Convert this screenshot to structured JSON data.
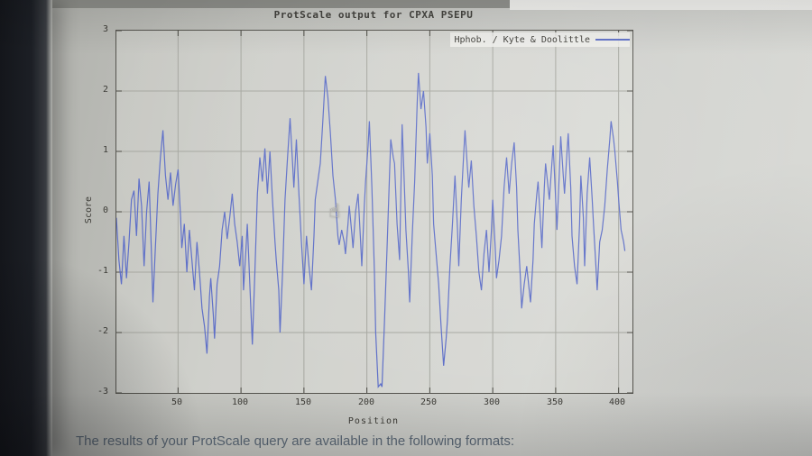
{
  "page": {
    "bottom_text": "The results of your ProtScale query are available in the following formats:",
    "cursor_icon": "☝"
  },
  "chart": {
    "title": "ProtScale output for CPXA PSEPU",
    "legend": "Hphob. / Kyte & Doolittle",
    "xlabel": "Position",
    "ylabel": "Score",
    "xtick_labels": [
      "50",
      "100",
      "150",
      "200",
      "250",
      "300",
      "350",
      "400"
    ],
    "ytick_labels": [
      "3",
      "2",
      "1",
      "0",
      "-1",
      "-2",
      "-3"
    ]
  },
  "chart_data": {
    "type": "line",
    "title": "ProtScale output for CPXA PSEPU",
    "xlabel": "Position",
    "ylabel": "Score",
    "xlim": [
      1,
      411
    ],
    "ylim": [
      -3,
      3
    ],
    "xticks": [
      50,
      100,
      150,
      200,
      250,
      300,
      350,
      400
    ],
    "yticks": [
      3,
      2,
      1,
      0,
      -1,
      -2,
      -3
    ],
    "grid": true,
    "legend_position": "top-right",
    "series": [
      {
        "name": "Hphob. / Kyte & Doolittle",
        "color": "#5e6fc8",
        "points": [
          [
            1,
            -0.1
          ],
          [
            3,
            -0.8
          ],
          [
            5,
            -1.2
          ],
          [
            7,
            -0.4
          ],
          [
            9,
            -1.1
          ],
          [
            11,
            -0.5
          ],
          [
            13,
            0.2
          ],
          [
            15,
            0.35
          ],
          [
            17,
            -0.4
          ],
          [
            19,
            0.55
          ],
          [
            21,
            0.1
          ],
          [
            23,
            -0.9
          ],
          [
            25,
            0.0
          ],
          [
            27,
            0.5
          ],
          [
            29,
            -0.8
          ],
          [
            30,
            -1.5
          ],
          [
            32,
            -0.6
          ],
          [
            34,
            0.3
          ],
          [
            36,
            0.9
          ],
          [
            38,
            1.35
          ],
          [
            40,
            0.6
          ],
          [
            42,
            0.2
          ],
          [
            44,
            0.65
          ],
          [
            46,
            0.1
          ],
          [
            48,
            0.45
          ],
          [
            50,
            0.7
          ],
          [
            52,
            -0.1
          ],
          [
            53,
            -0.6
          ],
          [
            55,
            -0.2
          ],
          [
            57,
            -1.0
          ],
          [
            59,
            -0.3
          ],
          [
            61,
            -0.8
          ],
          [
            63,
            -1.3
          ],
          [
            65,
            -0.5
          ],
          [
            67,
            -1.0
          ],
          [
            69,
            -1.6
          ],
          [
            71,
            -1.9
          ],
          [
            73,
            -2.35
          ],
          [
            75,
            -1.4
          ],
          [
            76,
            -1.1
          ],
          [
            78,
            -1.7
          ],
          [
            79,
            -2.1
          ],
          [
            81,
            -1.2
          ],
          [
            83,
            -0.9
          ],
          [
            85,
            -0.3
          ],
          [
            87,
            0.0
          ],
          [
            89,
            -0.45
          ],
          [
            91,
            -0.1
          ],
          [
            93,
            0.3
          ],
          [
            95,
            -0.2
          ],
          [
            97,
            -0.5
          ],
          [
            99,
            -0.9
          ],
          [
            101,
            -0.4
          ],
          [
            102,
            -1.3
          ],
          [
            104,
            -0.6
          ],
          [
            105,
            -0.2
          ],
          [
            107,
            -1.2
          ],
          [
            109,
            -2.2
          ],
          [
            111,
            -1.0
          ],
          [
            113,
            0.3
          ],
          [
            115,
            0.9
          ],
          [
            117,
            0.5
          ],
          [
            119,
            1.05
          ],
          [
            121,
            0.3
          ],
          [
            123,
            1.0
          ],
          [
            125,
            0.2
          ],
          [
            127,
            -0.5
          ],
          [
            128,
            -0.8
          ],
          [
            130,
            -1.3
          ],
          [
            131,
            -2.0
          ],
          [
            133,
            -1.0
          ],
          [
            135,
            0.2
          ],
          [
            137,
            0.9
          ],
          [
            139,
            1.55
          ],
          [
            141,
            0.8
          ],
          [
            142,
            0.4
          ],
          [
            144,
            1.2
          ],
          [
            146,
            0.3
          ],
          [
            148,
            -0.5
          ],
          [
            150,
            -1.2
          ],
          [
            152,
            -0.4
          ],
          [
            154,
            -0.9
          ],
          [
            156,
            -1.3
          ],
          [
            158,
            -0.4
          ],
          [
            159,
            0.2
          ],
          [
            161,
            0.5
          ],
          [
            163,
            0.8
          ],
          [
            165,
            1.5
          ],
          [
            167,
            2.25
          ],
          [
            169,
            1.9
          ],
          [
            171,
            1.3
          ],
          [
            173,
            0.6
          ],
          [
            175,
            0.2
          ],
          [
            177,
            -0.4
          ],
          [
            178,
            -0.55
          ],
          [
            180,
            -0.3
          ],
          [
            182,
            -0.5
          ],
          [
            183,
            -0.7
          ],
          [
            185,
            -0.2
          ],
          [
            186,
            0.1
          ],
          [
            188,
            -0.35
          ],
          [
            189,
            -0.6
          ],
          [
            191,
            0.0
          ],
          [
            193,
            0.3
          ],
          [
            195,
            -0.5
          ],
          [
            196,
            -0.9
          ],
          [
            198,
            0.1
          ],
          [
            199,
            0.5
          ],
          [
            201,
            1.1
          ],
          [
            202,
            1.5
          ],
          [
            204,
            0.4
          ],
          [
            206,
            -1.0
          ],
          [
            207,
            -2.0
          ],
          [
            209,
            -2.9
          ],
          [
            211,
            -2.85
          ],
          [
            212,
            -2.9
          ],
          [
            214,
            -1.8
          ],
          [
            216,
            -0.6
          ],
          [
            218,
            0.6
          ],
          [
            219,
            1.2
          ],
          [
            221,
            0.9
          ],
          [
            222,
            0.8
          ],
          [
            224,
            -0.2
          ],
          [
            226,
            -0.8
          ],
          [
            228,
            1.45
          ],
          [
            229,
            0.9
          ],
          [
            231,
            -0.3
          ],
          [
            233,
            -1.0
          ],
          [
            234,
            -1.5
          ],
          [
            236,
            -0.4
          ],
          [
            238,
            0.5
          ],
          [
            240,
            1.8
          ],
          [
            241,
            2.3
          ],
          [
            243,
            1.7
          ],
          [
            245,
            2.0
          ],
          [
            247,
            1.4
          ],
          [
            248,
            0.8
          ],
          [
            250,
            1.3
          ],
          [
            252,
            0.6
          ],
          [
            253,
            -0.2
          ],
          [
            255,
            -0.7
          ],
          [
            257,
            -1.2
          ],
          [
            259,
            -1.9
          ],
          [
            261,
            -2.55
          ],
          [
            263,
            -2.1
          ],
          [
            264,
            -1.8
          ],
          [
            266,
            -0.9
          ],
          [
            268,
            -0.2
          ],
          [
            270,
            0.6
          ],
          [
            272,
            -0.3
          ],
          [
            273,
            -0.9
          ],
          [
            275,
            0.2
          ],
          [
            277,
            1.0
          ],
          [
            278,
            1.35
          ],
          [
            280,
            0.7
          ],
          [
            281,
            0.4
          ],
          [
            283,
            0.85
          ],
          [
            285,
            0.1
          ],
          [
            287,
            -0.4
          ],
          [
            289,
            -1.0
          ],
          [
            291,
            -1.3
          ],
          [
            293,
            -0.7
          ],
          [
            295,
            -0.3
          ],
          [
            297,
            -1.0
          ],
          [
            299,
            -0.3
          ],
          [
            300,
            0.2
          ],
          [
            302,
            -0.6
          ],
          [
            303,
            -1.1
          ],
          [
            305,
            -0.8
          ],
          [
            307,
            -0.4
          ],
          [
            309,
            0.4
          ],
          [
            311,
            0.9
          ],
          [
            313,
            0.3
          ],
          [
            315,
            0.8
          ],
          [
            317,
            1.15
          ],
          [
            319,
            0.4
          ],
          [
            320,
            -0.3
          ],
          [
            322,
            -1.1
          ],
          [
            323,
            -1.6
          ],
          [
            325,
            -1.2
          ],
          [
            327,
            -0.9
          ],
          [
            329,
            -1.3
          ],
          [
            330,
            -1.5
          ],
          [
            332,
            -0.8
          ],
          [
            333,
            -0.2
          ],
          [
            335,
            0.3
          ],
          [
            336,
            0.5
          ],
          [
            338,
            -0.2
          ],
          [
            339,
            -0.6
          ],
          [
            341,
            0.4
          ],
          [
            342,
            0.8
          ],
          [
            344,
            0.4
          ],
          [
            345,
            0.2
          ],
          [
            347,
            0.8
          ],
          [
            348,
            1.1
          ],
          [
            350,
            0.2
          ],
          [
            351,
            -0.3
          ],
          [
            353,
            0.7
          ],
          [
            354,
            1.25
          ],
          [
            356,
            0.6
          ],
          [
            357,
            0.3
          ],
          [
            359,
            1.0
          ],
          [
            360,
            1.3
          ],
          [
            362,
            0.4
          ],
          [
            363,
            -0.4
          ],
          [
            365,
            -0.9
          ],
          [
            367,
            -1.2
          ],
          [
            369,
            -0.2
          ],
          [
            370,
            0.6
          ],
          [
            372,
            -0.1
          ],
          [
            373,
            -0.9
          ],
          [
            375,
            0.3
          ],
          [
            377,
            0.9
          ],
          [
            379,
            0.2
          ],
          [
            380,
            -0.2
          ],
          [
            382,
            -0.9
          ],
          [
            383,
            -1.3
          ],
          [
            385,
            -0.5
          ],
          [
            387,
            -0.3
          ],
          [
            389,
            0.1
          ],
          [
            391,
            0.7
          ],
          [
            393,
            1.2
          ],
          [
            394,
            1.5
          ],
          [
            396,
            1.2
          ],
          [
            397,
            1.0
          ],
          [
            399,
            0.5
          ],
          [
            400,
            0.2
          ],
          [
            402,
            -0.3
          ],
          [
            404,
            -0.5
          ],
          [
            405,
            -0.65
          ]
        ]
      }
    ]
  }
}
